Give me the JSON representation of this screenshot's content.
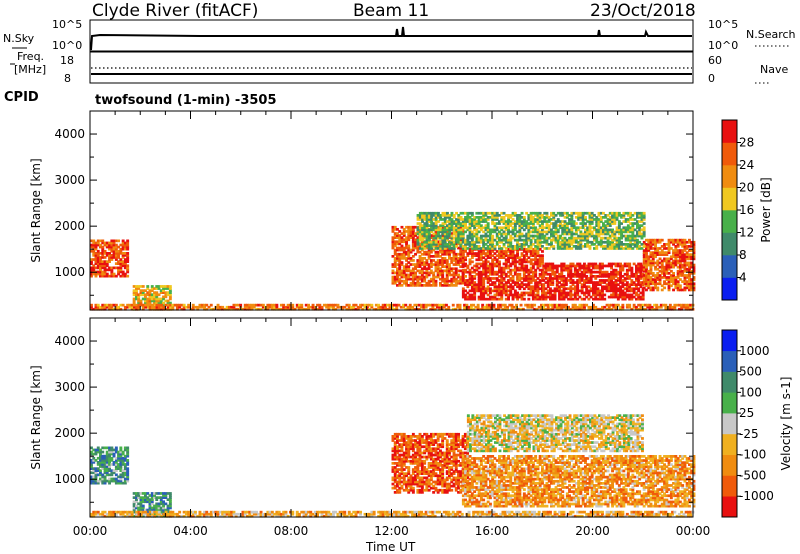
{
  "header": {
    "station": "Clyde River (fitACF)",
    "beam": "Beam 11",
    "date": "23/Oct/2018"
  },
  "top_panels": {
    "nsky_label": "N.Sky",
    "nsky_ticks": [
      "10^5",
      "10^0"
    ],
    "nsearch_label": "N.Search",
    "nsearch_ticks": [
      "10^5",
      "10^0"
    ],
    "freq_label_line1": "Freq.",
    "freq_label_line2": "[MHz]",
    "freq_ticks": [
      "18",
      "8"
    ],
    "nave_label": "Nave",
    "nave_ticks": [
      "60",
      "0"
    ],
    "cpid_label": "CPID",
    "cpid_text": "twofsound (1-min) -3505"
  },
  "chart_data": [
    {
      "type": "heatmap",
      "name": "power",
      "xlabel": "Time UT",
      "ylabel": "Slant Range [km]",
      "xlim": [
        0,
        24
      ],
      "ylim": [
        180,
        4500
      ],
      "x_ticks": [
        "00:00",
        "04:00",
        "08:00",
        "12:00",
        "16:00",
        "20:00",
        "00:00"
      ],
      "y_ticks": [
        1000,
        2000,
        3000,
        4000
      ],
      "colorbar_label": "Power [dB]",
      "colorbar_ticks": [
        4,
        8,
        12,
        16,
        20,
        24,
        28
      ],
      "colorbar_range": [
        0,
        32
      ],
      "colors": [
        "#0a1ef0",
        "#2a5fb8",
        "#3f8a6a",
        "#48b04a",
        "#f0c820",
        "#f08c10",
        "#f05a0a",
        "#e81010"
      ],
      "regions": [
        {
          "t0": 0.0,
          "t1": 1.5,
          "r0": 900,
          "r1": 1700,
          "level": 0.85
        },
        {
          "t0": 1.7,
          "t1": 3.2,
          "r0": 180,
          "r1": 700,
          "level": 0.6
        },
        {
          "t0": 12.0,
          "t1": 14.8,
          "r0": 700,
          "r1": 2000,
          "level": 0.8
        },
        {
          "t0": 14.8,
          "t1": 18.0,
          "r0": 400,
          "r1": 1500,
          "level": 0.9
        },
        {
          "t0": 18.0,
          "t1": 22.0,
          "r0": 400,
          "r1": 1200,
          "level": 0.95
        },
        {
          "t0": 22.0,
          "t1": 24.0,
          "r0": 600,
          "r1": 1700,
          "level": 0.8
        },
        {
          "t0": 13.0,
          "t1": 22.0,
          "r0": 1500,
          "r1": 2300,
          "level": 0.45
        },
        {
          "t0": 0.0,
          "t1": 24.0,
          "r0": 180,
          "r1": 300,
          "level": 0.75
        }
      ]
    },
    {
      "type": "heatmap",
      "name": "velocity",
      "xlabel": "Time UT",
      "ylabel": "Slant Range [km]",
      "xlim": [
        0,
        24
      ],
      "ylim": [
        180,
        4500
      ],
      "x_ticks": [
        "00:00",
        "04:00",
        "08:00",
        "12:00",
        "16:00",
        "20:00",
        "00:00"
      ],
      "y_ticks": [
        1000,
        2000,
        3000,
        4000
      ],
      "colorbar_label": "Velocity [m s-1]",
      "colorbar_ticks": [
        "1000",
        "500",
        "100",
        "25",
        "-25",
        "-100",
        "-500",
        "-1000"
      ],
      "colorbar_range": [
        -1000,
        1000
      ],
      "colors": [
        "#e81010",
        "#f05a0a",
        "#f08c10",
        "#f0b020",
        "#c8c8c8",
        "#48b04a",
        "#3f8a6a",
        "#2a5fb8",
        "#0a1ef0"
      ],
      "regions": [
        {
          "t0": 0.0,
          "t1": 1.5,
          "r0": 900,
          "r1": 1700,
          "level": 0.7
        },
        {
          "t0": 1.7,
          "t1": 3.2,
          "r0": 180,
          "r1": 700,
          "level": 0.7
        },
        {
          "t0": 12.0,
          "t1": 15.0,
          "r0": 700,
          "r1": 2000,
          "level": 0.15
        },
        {
          "t0": 15.0,
          "t1": 22.0,
          "r0": 1600,
          "r1": 2400,
          "level": 0.45
        },
        {
          "t0": 14.8,
          "t1": 24.0,
          "r0": 400,
          "r1": 1500,
          "level": 0.3
        },
        {
          "t0": 0.0,
          "t1": 24.0,
          "r0": 180,
          "r1": 300,
          "level": 0.35
        }
      ]
    }
  ]
}
